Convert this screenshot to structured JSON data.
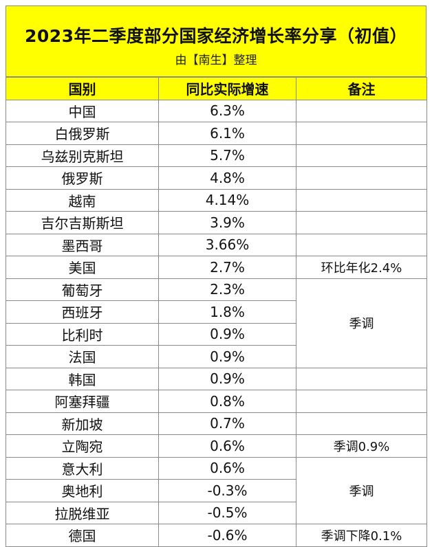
{
  "header": {
    "title": "2023年二季度部分国家经济增长率分享（初值）",
    "subtitle": "由【南生】整理",
    "background_color": "#ffff00"
  },
  "table": {
    "columns": [
      "国别",
      "同比实际增速",
      "备注"
    ],
    "rows": [
      {
        "country": "中国",
        "growth": "6.3%"
      },
      {
        "country": "白俄罗斯",
        "growth": "6.1%"
      },
      {
        "country": "乌兹别克斯坦",
        "growth": "5.7%"
      },
      {
        "country": "俄罗斯",
        "growth": "4.8%"
      },
      {
        "country": "越南",
        "growth": "4.14%"
      },
      {
        "country": "吉尔吉斯斯坦",
        "growth": "3.9%"
      },
      {
        "country": "墨西哥",
        "growth": "3.66%"
      },
      {
        "country": "美国",
        "growth": "2.7%"
      },
      {
        "country": "葡萄牙",
        "growth": "2.3%"
      },
      {
        "country": "西班牙",
        "growth": "1.8%"
      },
      {
        "country": "比利时",
        "growth": "0.9%"
      },
      {
        "country": "法国",
        "growth": "0.9%"
      },
      {
        "country": "韩国",
        "growth": "0.9%"
      },
      {
        "country": "阿塞拜疆",
        "growth": "0.8%"
      },
      {
        "country": "新加坡",
        "growth": "0.7%"
      },
      {
        "country": "立陶宛",
        "growth": "0.6%"
      },
      {
        "country": "意大利",
        "growth": "0.6%"
      },
      {
        "country": "奥地利",
        "growth": "-0.3%"
      },
      {
        "country": "拉脱维亚",
        "growth": "-0.5%"
      },
      {
        "country": "德国",
        "growth": "-0.6%"
      }
    ],
    "notes": {
      "usa": "环比年化2.4%",
      "seasonal_group1": "季调",
      "lithuania": "季调0.9%",
      "seasonal_group2": "季调",
      "germany": "季调下降0.1%"
    }
  }
}
